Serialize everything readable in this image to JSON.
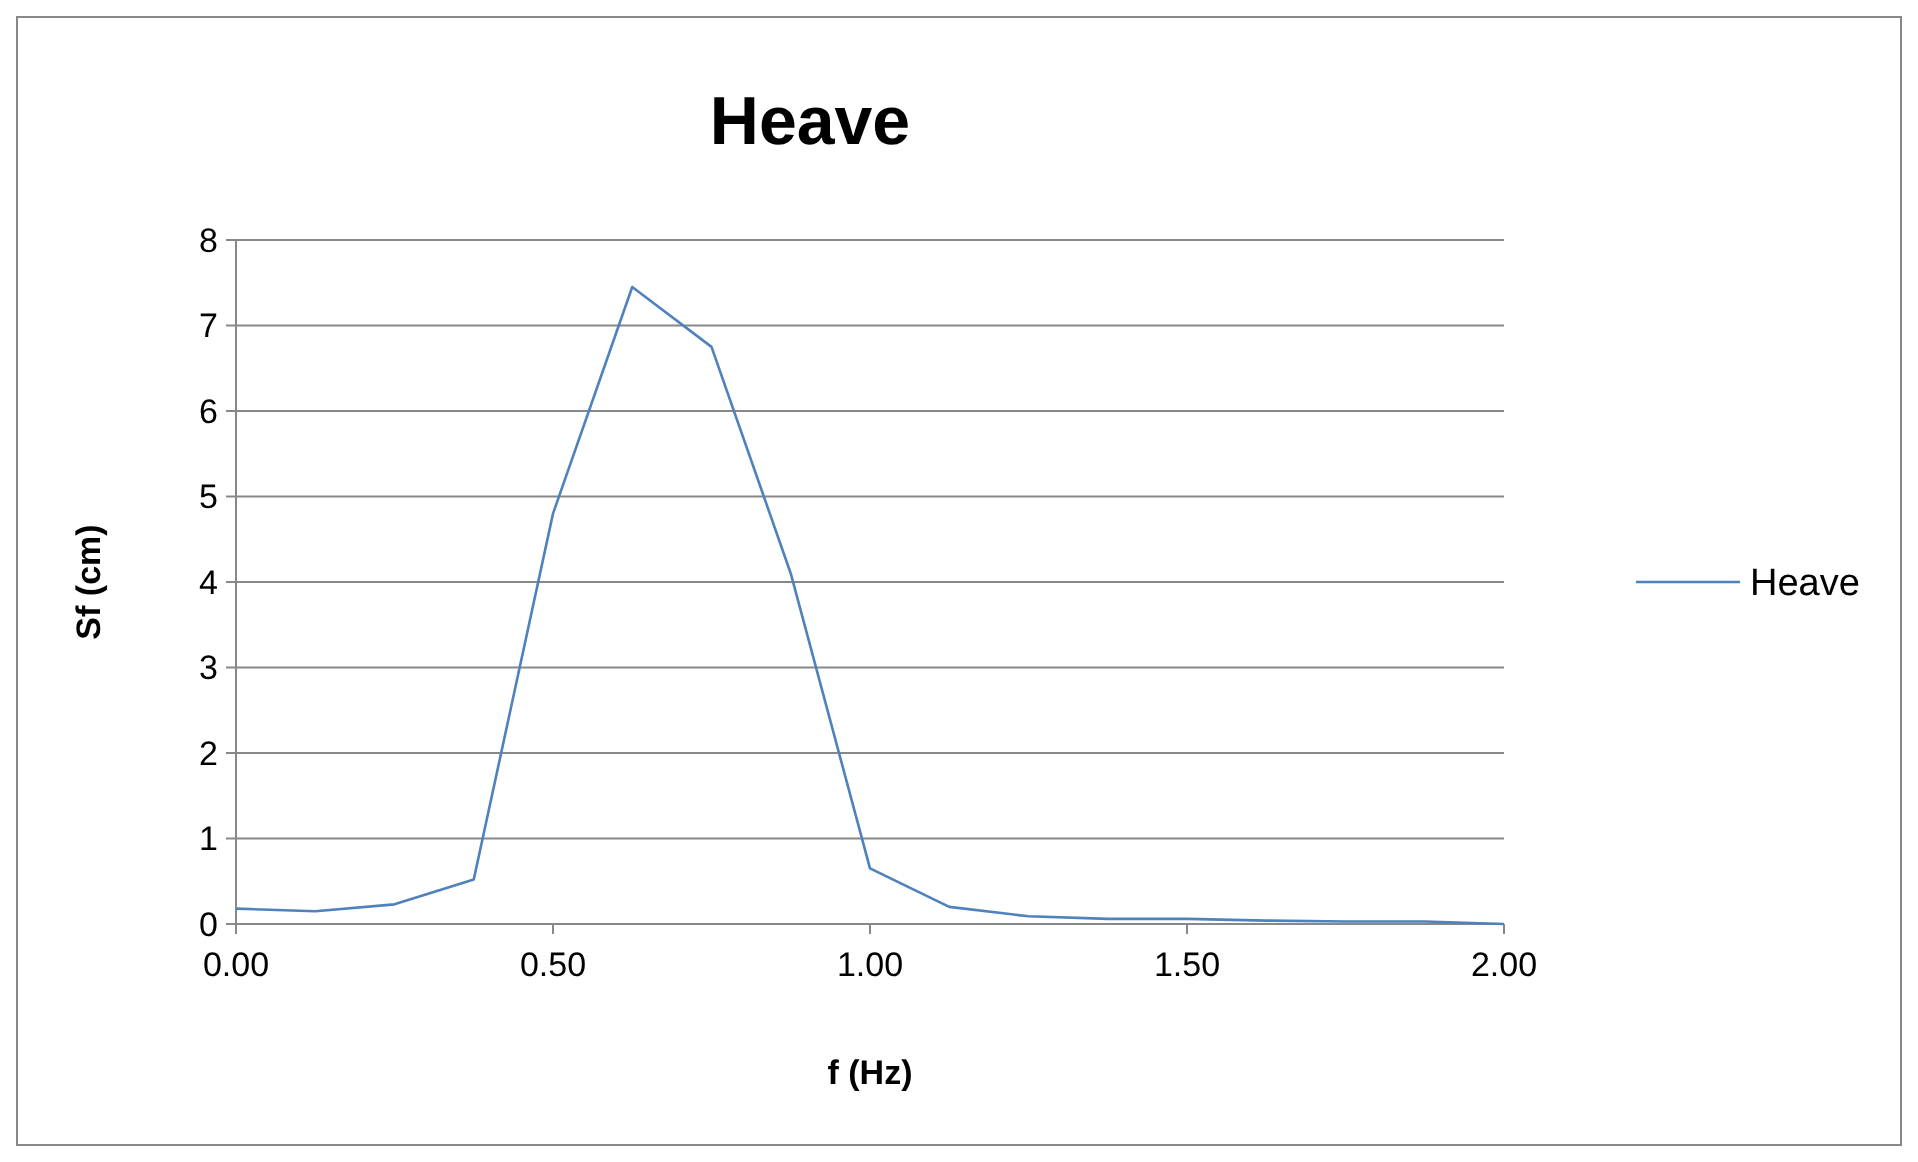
{
  "chart_data": {
    "type": "line",
    "title": "Heave",
    "xlabel": "f (Hz)",
    "ylabel": "Sf (cm)",
    "x": [
      0,
      0.125,
      0.25,
      0.375,
      0.5,
      0.625,
      0.75,
      0.875,
      1.0,
      1.125,
      1.25,
      1.375,
      1.5,
      1.625,
      1.75,
      1.875,
      2.0
    ],
    "series": [
      {
        "name": "Heave",
        "color": "#4f81bd",
        "values": [
          0.18,
          0.15,
          0.23,
          0.52,
          4.8,
          7.45,
          6.75,
          4.1,
          0.65,
          0.2,
          0.09,
          0.06,
          0.06,
          0.04,
          0.03,
          0.03,
          0.0
        ]
      }
    ],
    "xlim": [
      0,
      2
    ],
    "xticks": [
      {
        "value": 0,
        "label": "0.00"
      },
      {
        "value": 0.5,
        "label": "0.50"
      },
      {
        "value": 1,
        "label": "1.00"
      },
      {
        "value": 1.5,
        "label": "1.50"
      },
      {
        "value": 2,
        "label": "2.00"
      }
    ],
    "ylim": [
      0,
      8
    ],
    "yticks": [
      0,
      1,
      2,
      3,
      4,
      5,
      6,
      7,
      8
    ],
    "grid": "y",
    "legend": "right",
    "marker": "none",
    "line_style": "solid"
  }
}
